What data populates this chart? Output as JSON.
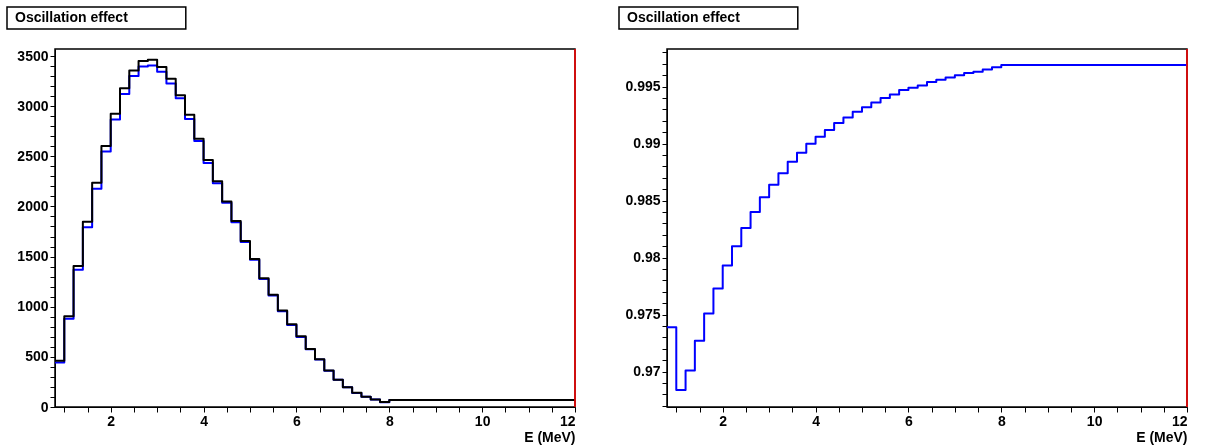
{
  "chart_data": [
    {
      "type": "histogram",
      "title": "Oscillation effect",
      "xlabel": "E (MeV)",
      "bins": [
        0.8,
        1.0,
        1.2,
        1.4,
        1.6,
        1.8,
        2.0,
        2.2,
        2.4,
        2.6,
        2.8,
        3.0,
        3.2,
        3.4,
        3.6,
        3.8,
        4.0,
        4.2,
        4.4,
        4.6,
        4.8,
        5.0,
        5.2,
        5.4,
        5.6,
        5.8,
        6.0,
        6.2,
        6.4,
        6.6,
        6.8,
        7.0,
        7.2,
        7.4,
        7.6,
        7.8,
        8.0,
        12
      ],
      "series": [
        {
          "color": "#0000ff",
          "values": [
            445,
            880,
            1369,
            1793,
            2177,
            2548,
            2866,
            3122,
            3300,
            3395,
            3405,
            3342,
            3227,
            3080,
            2873,
            2653,
            2433,
            2232,
            2036,
            1842,
            1645,
            1468,
            1277,
            1113,
            955,
            818,
            699,
            575,
            473,
            362,
            271,
            196,
            140,
            101,
            75,
            48,
            69
          ]
        },
        {
          "color": "#000000",
          "values": [
            460,
            906,
            1405,
            1848,
            2236,
            2603,
            2925,
            3178,
            3355,
            3450,
            3463,
            3391,
            3273,
            3109,
            2915,
            2676,
            2462,
            2252,
            2049,
            1855,
            1655,
            1477,
            1284,
            1120,
            962,
            824,
            706,
            578,
            476,
            364,
            272,
            197,
            141,
            102,
            76,
            49,
            69
          ]
        }
      ],
      "xlim": [
        0.8,
        12
      ],
      "ylim": [
        0,
        3570
      ],
      "xticks": [
        {
          "value": 1,
          "label": null
        },
        {
          "value": 1.5,
          "label": null
        },
        2,
        {
          "value": 2.5,
          "label": null
        },
        {
          "value": 3,
          "label": null
        },
        {
          "value": 3.5,
          "label": null
        },
        4,
        {
          "value": 4.5,
          "label": null
        },
        {
          "value": 5,
          "label": null
        },
        {
          "value": 5.5,
          "label": null
        },
        6,
        {
          "value": 6.5,
          "label": null
        },
        {
          "value": 7,
          "label": null
        },
        {
          "value": 7.5,
          "label": null
        },
        8,
        {
          "value": 8.5,
          "label": null
        },
        {
          "value": 9,
          "label": null
        },
        {
          "value": 9.5,
          "label": null
        },
        10,
        {
          "value": 10.5,
          "label": null
        },
        {
          "value": 11,
          "label": null
        },
        {
          "value": 11.5,
          "label": null
        },
        12
      ],
      "yticks": [
        0,
        {
          "value": 100,
          "label": null
        },
        {
          "value": 200,
          "label": null
        },
        {
          "value": 300,
          "label": null
        },
        {
          "value": 400,
          "label": null
        },
        500,
        {
          "value": 600,
          "label": null
        },
        {
          "value": 700,
          "label": null
        },
        {
          "value": 800,
          "label": null
        },
        {
          "value": 900,
          "label": null
        },
        1000,
        {
          "value": 1100,
          "label": null
        },
        {
          "value": 1200,
          "label": null
        },
        {
          "value": 1300,
          "label": null
        },
        {
          "value": 1400,
          "label": null
        },
        1500,
        {
          "value": 1600,
          "label": null
        },
        {
          "value": 1700,
          "label": null
        },
        {
          "value": 1800,
          "label": null
        },
        {
          "value": 1900,
          "label": null
        },
        2000,
        {
          "value": 2100,
          "label": null
        },
        {
          "value": 2200,
          "label": null
        },
        {
          "value": 2300,
          "label": null
        },
        {
          "value": 2400,
          "label": null
        },
        2500,
        {
          "value": 2600,
          "label": null
        },
        {
          "value": 2700,
          "label": null
        },
        {
          "value": 2800,
          "label": null
        },
        {
          "value": 2900,
          "label": null
        },
        3000,
        {
          "value": 3100,
          "label": null
        },
        {
          "value": 3200,
          "label": null
        },
        {
          "value": 3300,
          "label": null
        },
        {
          "value": 3400,
          "label": null
        },
        3500
      ],
      "ref_lines": [
        {
          "axis": "x",
          "value": 12,
          "color": "#ff0000"
        }
      ],
      "grid": false
    },
    {
      "type": "histogram",
      "title": "Oscillation effect",
      "xlabel": "E (MeV)",
      "bins": [
        0.8,
        1.0,
        1.2,
        1.4,
        1.6,
        1.8,
        2.0,
        2.2,
        2.4,
        2.6,
        2.8,
        3.0,
        3.2,
        3.4,
        3.6,
        3.8,
        4.0,
        4.2,
        4.4,
        4.6,
        4.8,
        5.0,
        5.2,
        5.4,
        5.6,
        5.8,
        6.0,
        6.2,
        6.4,
        6.6,
        6.8,
        7.0,
        7.2,
        7.4,
        7.6,
        7.8,
        8.0,
        12
      ],
      "series": [
        {
          "color": "#0000ff",
          "values": [
            0.9739,
            0.9684,
            0.9701,
            0.9727,
            0.9751,
            0.9773,
            0.9793,
            0.981,
            0.9826,
            0.984,
            0.9853,
            0.9864,
            0.9874,
            0.9884,
            0.9892,
            0.99,
            0.9906,
            0.9912,
            0.9918,
            0.9923,
            0.9928,
            0.9932,
            0.9936,
            0.994,
            0.9943,
            0.9947,
            0.9949,
            0.9951,
            0.9954,
            0.9956,
            0.9958,
            0.996,
            0.9962,
            0.9963,
            0.9965,
            0.9967,
            0.9969
          ]
        }
      ],
      "xlim": [
        0.8,
        12
      ],
      "ylim": [
        0.9669,
        0.9983
      ],
      "xticks": [
        {
          "value": 1,
          "label": null
        },
        {
          "value": 1.5,
          "label": null
        },
        2,
        {
          "value": 2.5,
          "label": null
        },
        {
          "value": 3,
          "label": null
        },
        {
          "value": 3.5,
          "label": null
        },
        4,
        {
          "value": 4.5,
          "label": null
        },
        {
          "value": 5,
          "label": null
        },
        {
          "value": 5.5,
          "label": null
        },
        6,
        {
          "value": 6.5,
          "label": null
        },
        {
          "value": 7,
          "label": null
        },
        {
          "value": 7.5,
          "label": null
        },
        8,
        {
          "value": 8.5,
          "label": null
        },
        {
          "value": 9,
          "label": null
        },
        {
          "value": 9.5,
          "label": null
        },
        10,
        {
          "value": 10.5,
          "label": null
        },
        {
          "value": 11,
          "label": null
        },
        {
          "value": 11.5,
          "label": null
        },
        12
      ],
      "yticks": [
        {
          "value": 0.967,
          "label": null
        },
        {
          "value": 0.968,
          "label": null
        },
        {
          "value": 0.969,
          "label": null
        },
        0.97,
        {
          "value": 0.971,
          "label": null
        },
        {
          "value": 0.972,
          "label": null
        },
        {
          "value": 0.973,
          "label": null
        },
        {
          "value": 0.974,
          "label": null
        },
        0.975,
        {
          "value": 0.976,
          "label": null
        },
        {
          "value": 0.977,
          "label": null
        },
        {
          "value": 0.978,
          "label": null
        },
        {
          "value": 0.979,
          "label": null
        },
        0.98,
        {
          "value": 0.981,
          "label": null
        },
        {
          "value": 0.982,
          "label": null
        },
        {
          "value": 0.983,
          "label": null
        },
        {
          "value": 0.984,
          "label": null
        },
        0.985,
        {
          "value": 0.986,
          "label": null
        },
        {
          "value": 0.987,
          "label": null
        },
        {
          "value": 0.988,
          "label": null
        },
        {
          "value": 0.989,
          "label": null
        },
        0.99,
        {
          "value": 0.991,
          "label": null
        },
        {
          "value": 0.992,
          "label": null
        },
        {
          "value": 0.993,
          "label": null
        },
        {
          "value": 0.994,
          "label": null
        },
        0.995,
        {
          "value": 0.996,
          "label": null
        },
        {
          "value": 0.997,
          "label": null
        },
        {
          "value": 0.998,
          "label": null
        }
      ],
      "ref_lines": [
        {
          "axis": "x",
          "value": 12,
          "color": "#ff0000"
        }
      ],
      "grid": false
    }
  ]
}
